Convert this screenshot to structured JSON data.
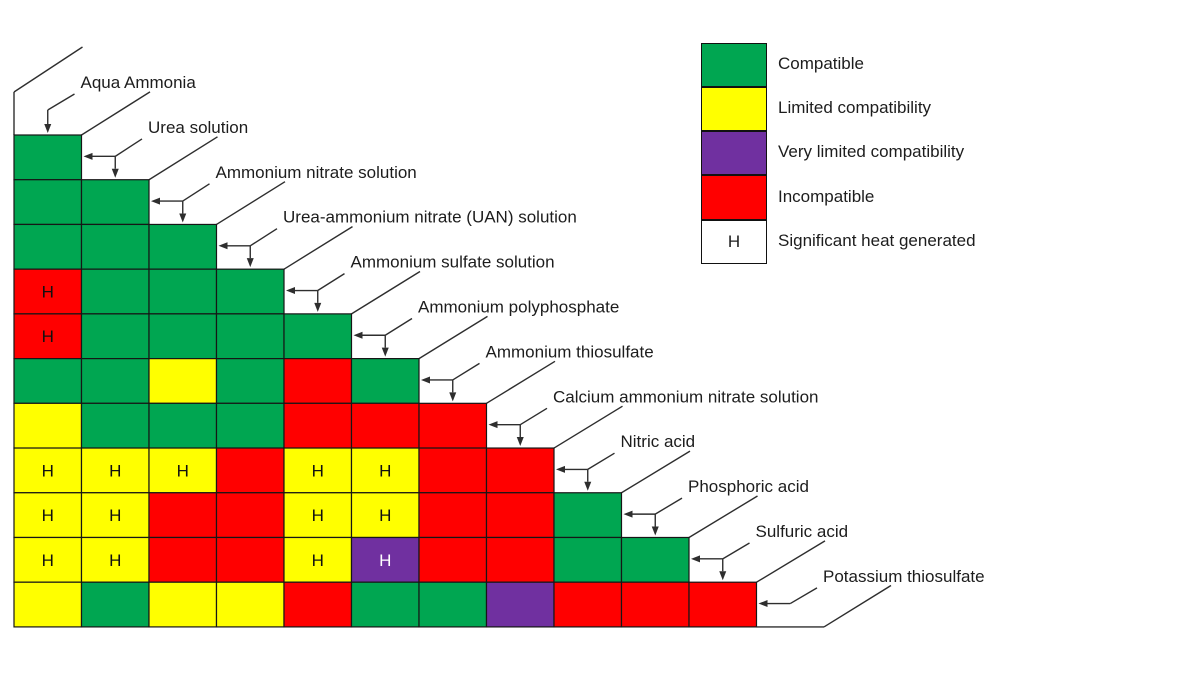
{
  "chart_data": {
    "type": "heatmap",
    "title": "",
    "description": "Lower-triangular chemical compatibility matrix; row i pairs chemical i+1 with chemicals 1..i",
    "chemicals": [
      "Aqua Ammonia",
      "Urea solution",
      "Ammonium nitrate solution",
      "Urea-ammonium nitrate (UAN) solution",
      "Ammonium sulfate solution",
      "Ammonium polyphosphate",
      "Ammonium thiosulfate",
      "Calcium ammonium nitrate solution",
      "Nitric acid",
      "Phosphoric acid",
      "Sulfuric acid",
      "Potassium thiosulfate"
    ],
    "matrix": [
      [
        "G"
      ],
      [
        "G",
        "G"
      ],
      [
        "G",
        "G",
        "G"
      ],
      [
        "RH",
        "G",
        "G",
        "G"
      ],
      [
        "RH",
        "G",
        "G",
        "G",
        "G"
      ],
      [
        "G",
        "G",
        "Y",
        "G",
        "R",
        "G"
      ],
      [
        "Y",
        "G",
        "G",
        "G",
        "R",
        "R",
        "R"
      ],
      [
        "YH",
        "YH",
        "YH",
        "R",
        "YH",
        "YH",
        "R",
        "R"
      ],
      [
        "YH",
        "YH",
        "R",
        "R",
        "YH",
        "YH",
        "R",
        "R",
        "G"
      ],
      [
        "YH",
        "YH",
        "R",
        "R",
        "YH",
        "PH",
        "R",
        "R",
        "G",
        "G"
      ],
      [
        "Y",
        "G",
        "Y",
        "Y",
        "R",
        "G",
        "G",
        "P",
        "R",
        "R",
        "R"
      ]
    ],
    "codes": {
      "G": "Compatible",
      "Y": "Limited compatibility",
      "P": "Very limited compatibility",
      "R": "Incompatible",
      "H": "Significant heat generated"
    },
    "colors": {
      "G": "#00A651",
      "Y": "#FFFF00",
      "P": "#7030A0",
      "R": "#FF0000",
      "H_swatch": "#FFFFFF",
      "cell_border": "#161616",
      "line": "#2e2e2e",
      "text": "#1d1d1d",
      "h_text_dark": "#111111",
      "h_text_light": "#ffffff"
    },
    "legend_position": "top-right",
    "heat_symbol": "H"
  },
  "legend": {
    "items": [
      {
        "code": "G",
        "label": "Compatible"
      },
      {
        "code": "Y",
        "label": "Limited compatibility"
      },
      {
        "code": "P",
        "label": "Very limited compatibility"
      },
      {
        "code": "R",
        "label": "Incompatible"
      },
      {
        "code": "H",
        "symbol": "H",
        "label": "Significant heat generated"
      }
    ]
  }
}
